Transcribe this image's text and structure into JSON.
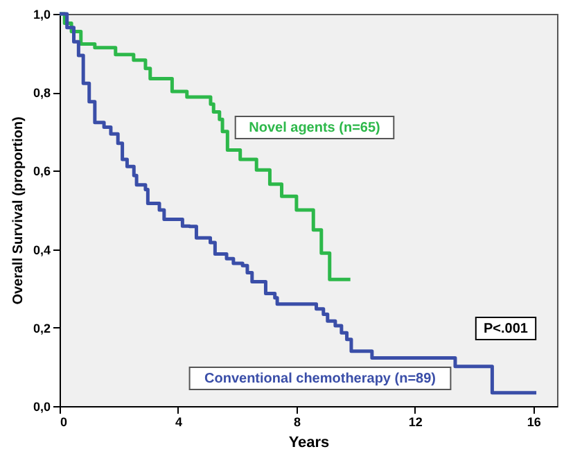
{
  "chart_data": {
    "type": "step",
    "xlabel": "Years",
    "ylabel": "Overall Survival (proportion)",
    "xlim": [
      0,
      16.8
    ],
    "ylim": [
      0,
      1
    ],
    "xticks": [
      0,
      4,
      8,
      12,
      16
    ],
    "yticks": [
      {
        "value": 0,
        "label": "0,0"
      },
      {
        "value": 0.2,
        "label": "0,2"
      },
      {
        "value": 0.4,
        "label": "0,4"
      },
      {
        "value": 0.6,
        "label": "0,6"
      },
      {
        "value": 0.8,
        "label": "0,8"
      },
      {
        "value": 1,
        "label": "1,0"
      }
    ],
    "grid": false,
    "marker": "none",
    "line_style": "solid",
    "annotations": [
      "P<.001"
    ],
    "series": [
      {
        "name": "Novel agents (n=65)",
        "color": "#2db84a",
        "x": [
          0,
          0.17,
          0.4,
          0.72,
          1.19,
          1.89,
          2.5,
          2.9,
          3.06,
          3.8,
          4.3,
          5.1,
          5.2,
          5.4,
          5.5,
          5.67,
          6.1,
          6.65,
          7.1,
          7.5,
          8.0,
          8.57,
          8.84,
          9.12,
          9.82
        ],
        "values": [
          1,
          0.976,
          0.955,
          0.923,
          0.914,
          0.896,
          0.882,
          0.861,
          0.835,
          0.802,
          0.788,
          0.77,
          0.75,
          0.731,
          0.7,
          0.653,
          0.629,
          0.602,
          0.566,
          0.535,
          0.5,
          0.449,
          0.39,
          0.323,
          0.323
        ]
      },
      {
        "name": "Conventional chemotherapy (n=89)",
        "color": "#3a4ea8",
        "x": [
          0,
          0.25,
          0.48,
          0.64,
          0.8,
          1.0,
          1.19,
          1.5,
          1.73,
          1.97,
          2.12,
          2.28,
          2.51,
          2.6,
          2.9,
          2.98,
          3.37,
          3.53,
          4.15,
          4.39,
          4.62,
          5.09,
          5.25,
          5.64,
          5.87,
          6.18,
          6.34,
          6.5,
          6.96,
          7.27,
          7.35,
          8.67,
          8.91,
          9.05,
          9.31,
          9.52,
          9.7,
          9.85,
          10.55,
          13.36,
          14.61,
          16.1
        ],
        "values": [
          1,
          0.965,
          0.929,
          0.894,
          0.823,
          0.776,
          0.723,
          0.711,
          0.694,
          0.67,
          0.629,
          0.611,
          0.588,
          0.564,
          0.552,
          0.517,
          0.5,
          0.476,
          0.459,
          0.458,
          0.429,
          0.417,
          0.388,
          0.376,
          0.364,
          0.358,
          0.34,
          0.317,
          0.287,
          0.276,
          0.26,
          0.248,
          0.234,
          0.217,
          0.205,
          0.187,
          0.17,
          0.14,
          0.123,
          0.101,
          0.034,
          0.034
        ]
      }
    ]
  }
}
